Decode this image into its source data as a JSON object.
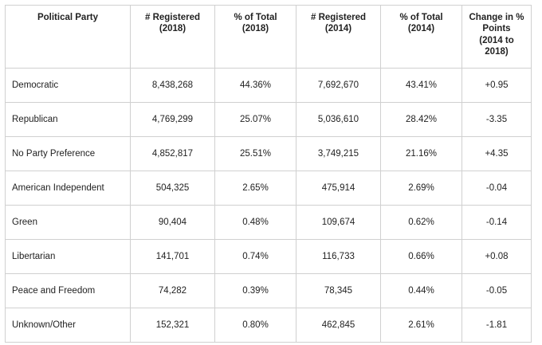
{
  "headers": [
    [
      "Political Party"
    ],
    [
      "# Registered",
      "(2018)"
    ],
    [
      "% of Total",
      "(2018)"
    ],
    [
      "# Registered",
      "(2014)"
    ],
    [
      "% of Total",
      "(2014)"
    ],
    [
      "Change in %",
      "Points",
      "(2014 to 2018)"
    ]
  ],
  "rows": [
    [
      "Democratic",
      "8,438,268",
      "44.36%",
      "7,692,670",
      "43.41%",
      "+0.95"
    ],
    [
      "Republican",
      "4,769,299",
      "25.07%",
      "5,036,610",
      "28.42%",
      "-3.35"
    ],
    [
      "No Party Preference",
      "4,852,817",
      "25.51%",
      "3,749,215",
      "21.16%",
      "+4.35"
    ],
    [
      "American Independent",
      "504,325",
      "2.65%",
      "475,914",
      "2.69%",
      "-0.04"
    ],
    [
      "Green",
      "90,404",
      "0.48%",
      "109,674",
      "0.62%",
      "-0.14"
    ],
    [
      "Libertarian",
      "141,701",
      "0.74%",
      "116,733",
      "0.66%",
      "+0.08"
    ],
    [
      "Peace and Freedom",
      "74,282",
      "0.39%",
      "78,345",
      "0.44%",
      "-0.05"
    ],
    [
      "Unknown/Other",
      "152,321",
      "0.80%",
      "462,845",
      "2.61%",
      "-1.81"
    ]
  ]
}
